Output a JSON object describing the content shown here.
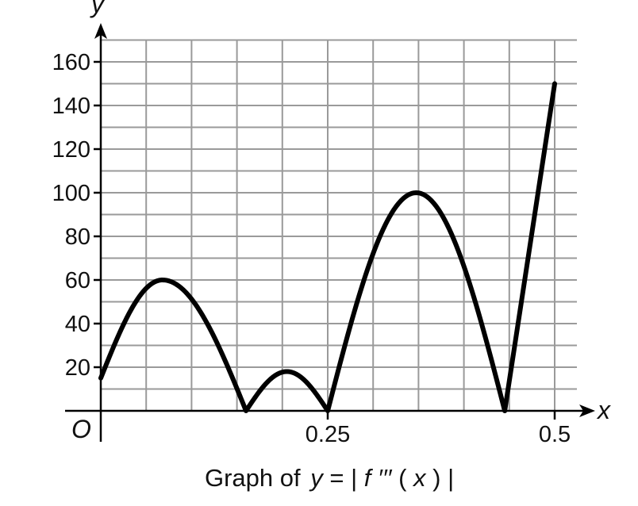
{
  "chart_data": {
    "type": "line",
    "title": "",
    "caption": {
      "prefix": "Graph of ",
      "y": "y",
      "equals": " = | ",
      "f": "f ",
      "primes": "′′′",
      "paren_open": "(",
      "x": "x",
      "paren_close": ") |"
    },
    "xlabel": "x",
    "ylabel": "y",
    "origin_label": "O",
    "xlim": [
      0,
      0.5
    ],
    "ylim": [
      0,
      160
    ],
    "x_grid_step": 0.05,
    "y_grid_step": 10,
    "x_ticks": [
      {
        "value": 0.25,
        "label": "0.25"
      },
      {
        "value": 0.5,
        "label": "0.5"
      }
    ],
    "y_ticks": [
      {
        "value": 20,
        "label": "20"
      },
      {
        "value": 40,
        "label": "40"
      },
      {
        "value": 60,
        "label": "60"
      },
      {
        "value": 80,
        "label": "80"
      },
      {
        "value": 100,
        "label": "100"
      },
      {
        "value": 120,
        "label": "120"
      },
      {
        "value": 140,
        "label": "140"
      },
      {
        "value": 160,
        "label": "160"
      }
    ],
    "series": [
      {
        "segments": [
          {
            "shape": "sine",
            "x0": 0.0,
            "x1": 0.16,
            "y0": 15,
            "peak": 60,
            "peak_x": 0.068,
            "y1": 0
          },
          {
            "shape": "arch",
            "x0": 0.16,
            "x1": 0.25,
            "peak": 18
          },
          {
            "shape": "arch",
            "x0": 0.25,
            "x1": 0.445,
            "peak": 100
          },
          {
            "shape": "line",
            "points": [
              [
                0.445,
                0
              ],
              [
                0.5,
                150
              ]
            ]
          }
        ]
      }
    ]
  }
}
